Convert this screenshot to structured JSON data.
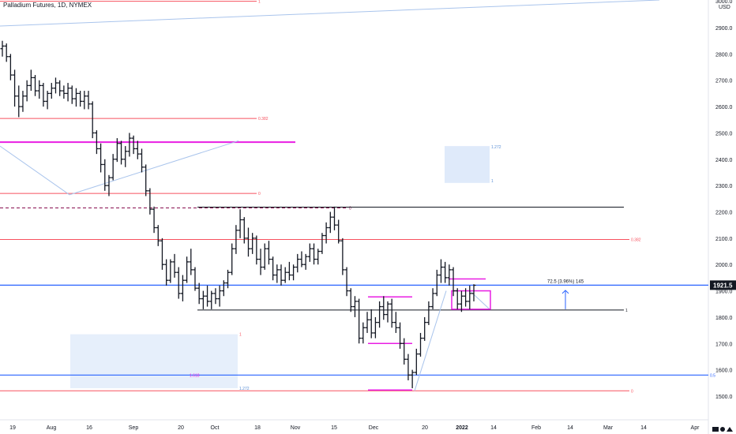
{
  "header": {
    "symbol_title": "Palladium Futures, 1D, NYMEX"
  },
  "price_axis": {
    "unit": "USD",
    "top_label": "3000.0",
    "current_price_label": "1921.5"
  },
  "chart_data": {
    "type": "candlestick-ohlc-bars",
    "title": "Palladium Futures, 1D, NYMEX",
    "ylim": [
      1410,
      3005
    ],
    "y_ticks": [
      1500.0,
      1600.0,
      1700.0,
      1800.0,
      1900.0,
      2000.0,
      2100.0,
      2200.0,
      2300.0,
      2400.0,
      2500.0,
      2600.0,
      2700.0,
      2800.0,
      2900.0
    ],
    "x_tick_labels": [
      "19",
      "Aug",
      "16",
      "Sep",
      "20",
      "Oct",
      "18",
      "Nov",
      "15",
      "Dec",
      "20",
      "2022",
      "14",
      "Feb",
      "14",
      "Mar",
      "14",
      "Apr"
    ],
    "current_price": 1921.5,
    "price_series": [
      {
        "o": 2820,
        "h": 2850,
        "l": 2790,
        "c": 2830
      },
      {
        "o": 2830,
        "h": 2840,
        "l": 2770,
        "c": 2790
      },
      {
        "o": 2790,
        "h": 2800,
        "l": 2700,
        "c": 2720
      },
      {
        "o": 2720,
        "h": 2740,
        "l": 2600,
        "c": 2640
      },
      {
        "o": 2640,
        "h": 2680,
        "l": 2560,
        "c": 2600
      },
      {
        "o": 2600,
        "h": 2660,
        "l": 2580,
        "c": 2640
      },
      {
        "o": 2640,
        "h": 2700,
        "l": 2620,
        "c": 2680
      },
      {
        "o": 2680,
        "h": 2740,
        "l": 2660,
        "c": 2710
      },
      {
        "o": 2710,
        "h": 2720,
        "l": 2640,
        "c": 2660
      },
      {
        "o": 2660,
        "h": 2700,
        "l": 2630,
        "c": 2680
      },
      {
        "o": 2680,
        "h": 2690,
        "l": 2600,
        "c": 2620
      },
      {
        "o": 2620,
        "h": 2660,
        "l": 2590,
        "c": 2650
      },
      {
        "o": 2650,
        "h": 2690,
        "l": 2630,
        "c": 2670
      },
      {
        "o": 2670,
        "h": 2710,
        "l": 2650,
        "c": 2690
      },
      {
        "o": 2690,
        "h": 2700,
        "l": 2640,
        "c": 2660
      },
      {
        "o": 2660,
        "h": 2680,
        "l": 2630,
        "c": 2650
      },
      {
        "o": 2650,
        "h": 2690,
        "l": 2620,
        "c": 2670
      },
      {
        "o": 2670,
        "h": 2680,
        "l": 2610,
        "c": 2630
      },
      {
        "o": 2630,
        "h": 2670,
        "l": 2600,
        "c": 2650
      },
      {
        "o": 2650,
        "h": 2660,
        "l": 2600,
        "c": 2620
      },
      {
        "o": 2620,
        "h": 2660,
        "l": 2590,
        "c": 2640
      },
      {
        "o": 2640,
        "h": 2660,
        "l": 2590,
        "c": 2610
      },
      {
        "o": 2610,
        "h": 2620,
        "l": 2480,
        "c": 2500
      },
      {
        "o": 2500,
        "h": 2510,
        "l": 2420,
        "c": 2440
      },
      {
        "o": 2440,
        "h": 2460,
        "l": 2350,
        "c": 2380
      },
      {
        "o": 2380,
        "h": 2400,
        "l": 2280,
        "c": 2300
      },
      {
        "o": 2300,
        "h": 2340,
        "l": 2260,
        "c": 2330
      },
      {
        "o": 2330,
        "h": 2420,
        "l": 2320,
        "c": 2400
      },
      {
        "o": 2400,
        "h": 2480,
        "l": 2390,
        "c": 2460
      },
      {
        "o": 2460,
        "h": 2470,
        "l": 2380,
        "c": 2400
      },
      {
        "o": 2400,
        "h": 2450,
        "l": 2370,
        "c": 2430
      },
      {
        "o": 2430,
        "h": 2500,
        "l": 2410,
        "c": 2480
      },
      {
        "o": 2480,
        "h": 2490,
        "l": 2420,
        "c": 2440
      },
      {
        "o": 2440,
        "h": 2470,
        "l": 2400,
        "c": 2420
      },
      {
        "o": 2420,
        "h": 2440,
        "l": 2350,
        "c": 2370
      },
      {
        "o": 2370,
        "h": 2380,
        "l": 2260,
        "c": 2280
      },
      {
        "o": 2280,
        "h": 2290,
        "l": 2190,
        "c": 2210
      },
      {
        "o": 2210,
        "h": 2220,
        "l": 2120,
        "c": 2140
      },
      {
        "o": 2140,
        "h": 2150,
        "l": 2070,
        "c": 2090
      },
      {
        "o": 2090,
        "h": 2100,
        "l": 1980,
        "c": 2000
      },
      {
        "o": 2000,
        "h": 2020,
        "l": 1920,
        "c": 1940
      },
      {
        "o": 1940,
        "h": 2020,
        "l": 1930,
        "c": 2010
      },
      {
        "o": 2010,
        "h": 2040,
        "l": 1950,
        "c": 1970
      },
      {
        "o": 1970,
        "h": 1990,
        "l": 1870,
        "c": 1890
      },
      {
        "o": 1890,
        "h": 1960,
        "l": 1860,
        "c": 1940
      },
      {
        "o": 1940,
        "h": 2030,
        "l": 1930,
        "c": 2010
      },
      {
        "o": 2010,
        "h": 2060,
        "l": 1960,
        "c": 1980
      },
      {
        "o": 1980,
        "h": 1990,
        "l": 1900,
        "c": 1910
      },
      {
        "o": 1910,
        "h": 1930,
        "l": 1850,
        "c": 1870
      },
      {
        "o": 1870,
        "h": 1900,
        "l": 1830,
        "c": 1880
      },
      {
        "o": 1880,
        "h": 1920,
        "l": 1840,
        "c": 1860
      },
      {
        "o": 1860,
        "h": 1900,
        "l": 1830,
        "c": 1890
      },
      {
        "o": 1890,
        "h": 1910,
        "l": 1850,
        "c": 1870
      },
      {
        "o": 1870,
        "h": 1920,
        "l": 1840,
        "c": 1900
      },
      {
        "o": 1900,
        "h": 1940,
        "l": 1880,
        "c": 1930
      },
      {
        "o": 1930,
        "h": 1980,
        "l": 1910,
        "c": 1970
      },
      {
        "o": 1970,
        "h": 2080,
        "l": 1960,
        "c": 2060
      },
      {
        "o": 2060,
        "h": 2150,
        "l": 2040,
        "c": 2130
      },
      {
        "o": 2130,
        "h": 2210,
        "l": 2100,
        "c": 2170
      },
      {
        "o": 2170,
        "h": 2180,
        "l": 2080,
        "c": 2100
      },
      {
        "o": 2100,
        "h": 2140,
        "l": 2030,
        "c": 2060
      },
      {
        "o": 2060,
        "h": 2120,
        "l": 2040,
        "c": 2100
      },
      {
        "o": 2100,
        "h": 2110,
        "l": 2000,
        "c": 2020
      },
      {
        "o": 2020,
        "h": 2060,
        "l": 1960,
        "c": 1990
      },
      {
        "o": 1990,
        "h": 2080,
        "l": 1980,
        "c": 2060
      },
      {
        "o": 2060,
        "h": 2090,
        "l": 2000,
        "c": 2020
      },
      {
        "o": 2020,
        "h": 2030,
        "l": 1940,
        "c": 1960
      },
      {
        "o": 1960,
        "h": 2000,
        "l": 1930,
        "c": 1980
      },
      {
        "o": 1980,
        "h": 2000,
        "l": 1920,
        "c": 1940
      },
      {
        "o": 1940,
        "h": 1990,
        "l": 1930,
        "c": 1970
      },
      {
        "o": 1970,
        "h": 2010,
        "l": 1940,
        "c": 1960
      },
      {
        "o": 1960,
        "h": 2000,
        "l": 1940,
        "c": 1990
      },
      {
        "o": 1990,
        "h": 2040,
        "l": 1970,
        "c": 2020
      },
      {
        "o": 2020,
        "h": 2050,
        "l": 1990,
        "c": 2000
      },
      {
        "o": 2000,
        "h": 2040,
        "l": 1980,
        "c": 2030
      },
      {
        "o": 2030,
        "h": 2080,
        "l": 2010,
        "c": 2060
      },
      {
        "o": 2060,
        "h": 2080,
        "l": 2000,
        "c": 2020
      },
      {
        "o": 2020,
        "h": 2060,
        "l": 2000,
        "c": 2050
      },
      {
        "o": 2050,
        "h": 2120,
        "l": 2040,
        "c": 2110
      },
      {
        "o": 2110,
        "h": 2160,
        "l": 2080,
        "c": 2140
      },
      {
        "o": 2140,
        "h": 2200,
        "l": 2120,
        "c": 2180
      },
      {
        "o": 2180,
        "h": 2220,
        "l": 2130,
        "c": 2150
      },
      {
        "o": 2150,
        "h": 2170,
        "l": 2080,
        "c": 2090
      },
      {
        "o": 2090,
        "h": 2100,
        "l": 1960,
        "c": 1980
      },
      {
        "o": 1980,
        "h": 1990,
        "l": 1880,
        "c": 1900
      },
      {
        "o": 1900,
        "h": 1910,
        "l": 1820,
        "c": 1840
      },
      {
        "o": 1840,
        "h": 1880,
        "l": 1800,
        "c": 1860
      },
      {
        "o": 1860,
        "h": 1870,
        "l": 1700,
        "c": 1720
      },
      {
        "o": 1720,
        "h": 1780,
        "l": 1700,
        "c": 1760
      },
      {
        "o": 1760,
        "h": 1820,
        "l": 1740,
        "c": 1790
      },
      {
        "o": 1790,
        "h": 1830,
        "l": 1720,
        "c": 1740
      },
      {
        "o": 1740,
        "h": 1800,
        "l": 1720,
        "c": 1780
      },
      {
        "o": 1780,
        "h": 1860,
        "l": 1760,
        "c": 1840
      },
      {
        "o": 1840,
        "h": 1880,
        "l": 1790,
        "c": 1810
      },
      {
        "o": 1810,
        "h": 1860,
        "l": 1780,
        "c": 1850
      },
      {
        "o": 1850,
        "h": 1870,
        "l": 1760,
        "c": 1780
      },
      {
        "o": 1780,
        "h": 1820,
        "l": 1740,
        "c": 1760
      },
      {
        "o": 1760,
        "h": 1780,
        "l": 1680,
        "c": 1700
      },
      {
        "o": 1700,
        "h": 1720,
        "l": 1620,
        "c": 1640
      },
      {
        "o": 1640,
        "h": 1660,
        "l": 1560,
        "c": 1580
      },
      {
        "o": 1580,
        "h": 1600,
        "l": 1530,
        "c": 1590
      },
      {
        "o": 1590,
        "h": 1680,
        "l": 1580,
        "c": 1660
      },
      {
        "o": 1660,
        "h": 1740,
        "l": 1650,
        "c": 1720
      },
      {
        "o": 1720,
        "h": 1800,
        "l": 1710,
        "c": 1780
      },
      {
        "o": 1780,
        "h": 1860,
        "l": 1770,
        "c": 1840
      },
      {
        "o": 1840,
        "h": 1910,
        "l": 1830,
        "c": 1890
      },
      {
        "o": 1890,
        "h": 1980,
        "l": 1880,
        "c": 1960
      },
      {
        "o": 1960,
        "h": 2020,
        "l": 1930,
        "c": 1990
      },
      {
        "o": 1990,
        "h": 2010,
        "l": 1930,
        "c": 1950
      },
      {
        "o": 1950,
        "h": 2000,
        "l": 1920,
        "c": 1980
      },
      {
        "o": 1980,
        "h": 1990,
        "l": 1880,
        "c": 1900
      },
      {
        "o": 1900,
        "h": 1910,
        "l": 1830,
        "c": 1850
      },
      {
        "o": 1850,
        "h": 1900,
        "l": 1820,
        "c": 1880
      },
      {
        "o": 1880,
        "h": 1910,
        "l": 1840,
        "c": 1860
      },
      {
        "o": 1860,
        "h": 1920,
        "l": 1830,
        "c": 1890
      },
      {
        "o": 1890,
        "h": 1925,
        "l": 1860,
        "c": 1921
      }
    ],
    "annotations": [
      {
        "type": "hline",
        "price": 2555,
        "color": "#f7525f",
        "label": "0.382"
      },
      {
        "type": "hline",
        "price": 2465,
        "color": "#e91ee3",
        "label": ""
      },
      {
        "type": "hline",
        "price": 2270,
        "color": "#f7525f",
        "label": "0"
      },
      {
        "type": "hline-dashed",
        "price": 2215,
        "color": "#880e4f",
        "label": "0"
      },
      {
        "type": "hline",
        "price": 2218,
        "color": "#131722",
        "label": ""
      },
      {
        "type": "hline",
        "price": 2095,
        "color": "#f7525f",
        "label": "0.382"
      },
      {
        "type": "hline",
        "price": 1921.5,
        "color": "#2962ff",
        "label": "0.382"
      },
      {
        "type": "hline",
        "price": 1827,
        "color": "#131722",
        "label": "1"
      },
      {
        "type": "hline",
        "price": 1580,
        "color": "#2962ff",
        "label": "0.5"
      },
      {
        "type": "hline",
        "price": 1520,
        "color": "#f7525f",
        "label": "0"
      },
      {
        "type": "hline",
        "price": 3000,
        "color": "#f7525f",
        "label": "1"
      }
    ],
    "box_labels": [
      "1.272",
      "1",
      "1",
      "1.272",
      "1.618"
    ],
    "measure_label": "72.5 (3.96%) 145"
  },
  "colors": {
    "bars": "#131722",
    "fib_red": "#f7525f",
    "magenta": "#e91ee3",
    "blue_line": "#2962ff",
    "projection_fill": "#dbe8fa",
    "price_tag_bg": "#131722"
  }
}
